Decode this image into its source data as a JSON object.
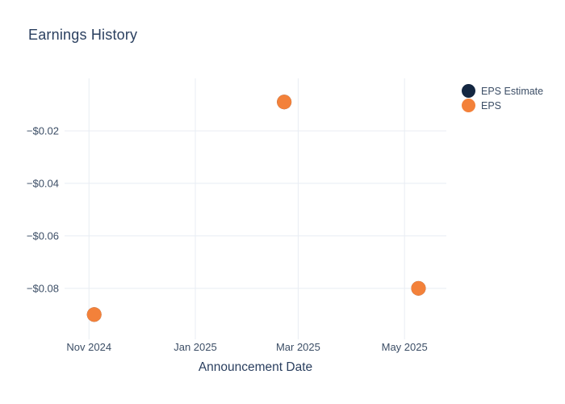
{
  "title": "Earnings History",
  "colors": {
    "background": "#ffffff",
    "title_text": "#2a3f5f",
    "tick_text": "#3c4e66",
    "grid": "#e8edf3",
    "eps_estimate": "#142741",
    "eps": "#f3813a"
  },
  "legend": {
    "items": [
      {
        "label": "EPS Estimate",
        "color": "#142741"
      },
      {
        "label": "EPS",
        "color": "#f3813a"
      }
    ]
  },
  "chart_data": {
    "type": "scatter",
    "title": "Earnings History",
    "xlabel": "Announcement Date",
    "ylabel": "",
    "grid": true,
    "legend_position": "top-right",
    "marker_radius": 9,
    "x_domain": [
      "2024-10-18",
      "2025-05-25"
    ],
    "y_domain": [
      0,
      -0.0973
    ],
    "x_ticks": [
      {
        "value": "2024-11-01",
        "label": "Nov 2024"
      },
      {
        "value": "2025-01-01",
        "label": "Jan 2025"
      },
      {
        "value": "2025-03-01",
        "label": "Mar 2025"
      },
      {
        "value": "2025-05-01",
        "label": "May 2025"
      }
    ],
    "y_ticks": [
      {
        "value": -0.02,
        "label": "−$0.02"
      },
      {
        "value": -0.04,
        "label": "−$0.04"
      },
      {
        "value": -0.06,
        "label": "−$0.06"
      },
      {
        "value": -0.08,
        "label": "−$0.08"
      }
    ],
    "series": [
      {
        "name": "EPS Estimate",
        "color": "#142741",
        "points": [
          {
            "x": "2024-11-04",
            "y": -0.09
          },
          {
            "x": "2025-02-21",
            "y": -0.009
          },
          {
            "x": "2025-05-09",
            "y": -0.08
          }
        ]
      },
      {
        "name": "EPS",
        "color": "#f3813a",
        "points": [
          {
            "x": "2024-11-04",
            "y": -0.09
          },
          {
            "x": "2025-02-21",
            "y": -0.009
          },
          {
            "x": "2025-05-09",
            "y": -0.08
          }
        ]
      }
    ]
  }
}
